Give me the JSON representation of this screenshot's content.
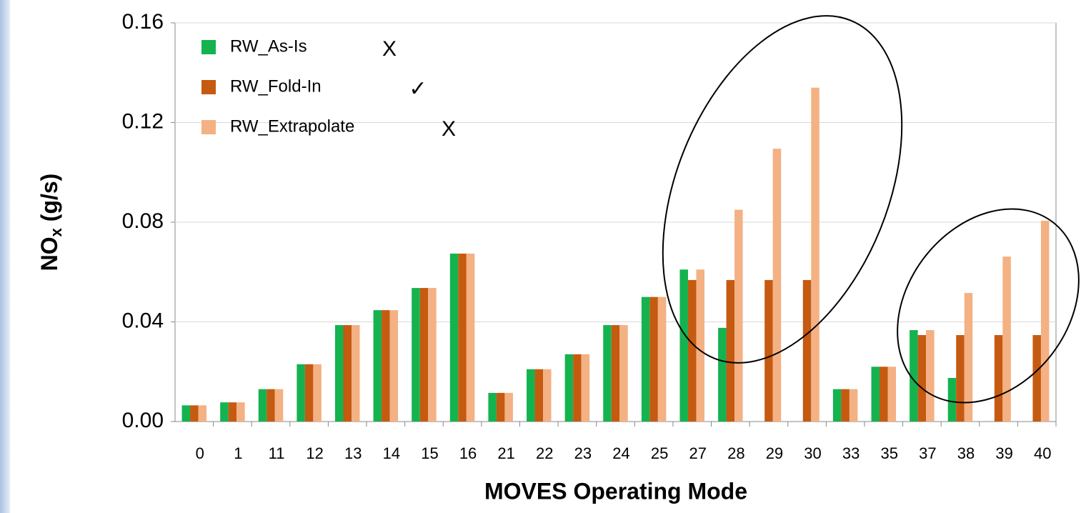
{
  "chart_data": {
    "type": "bar",
    "x_label": "MOVES Operating Mode",
    "y_label": [
      "NO",
      "x",
      " (g/s)"
    ],
    "categories": [
      "0",
      "1",
      "11",
      "12",
      "13",
      "14",
      "15",
      "16",
      "21",
      "22",
      "23",
      "24",
      "25",
      "27",
      "28",
      "29",
      "30",
      "33",
      "35",
      "37",
      "38",
      "39",
      "40"
    ],
    "series": [
      {
        "name": "RW_As-Is",
        "color": "#14b350",
        "annotation": "X",
        "values": [
          0.0065,
          0.0077,
          0.013,
          0.023,
          0.0387,
          0.0447,
          0.0536,
          0.0674,
          0.0115,
          0.021,
          0.027,
          0.0387,
          0.05,
          0.061,
          0.0376,
          null,
          null,
          0.013,
          0.022,
          0.0367,
          0.0175,
          null,
          null
        ]
      },
      {
        "name": "RW_Fold-In",
        "color": "#c55a11",
        "annotation": "✓",
        "values": [
          0.0065,
          0.0077,
          0.013,
          0.023,
          0.0387,
          0.0447,
          0.0536,
          0.0674,
          0.0115,
          0.021,
          0.027,
          0.0387,
          0.05,
          0.0568,
          0.0568,
          0.0568,
          0.0568,
          0.013,
          0.022,
          0.0347,
          0.0347,
          0.0347,
          0.0347
        ]
      },
      {
        "name": "RW_Extrapolate",
        "color": "#f4b183",
        "annotation": "X",
        "values": [
          0.0065,
          0.0077,
          0.013,
          0.023,
          0.0387,
          0.0447,
          0.0536,
          0.0674,
          0.0115,
          0.021,
          0.027,
          0.0387,
          0.05,
          0.061,
          0.085,
          0.1095,
          0.134,
          0.013,
          0.022,
          0.0367,
          0.0516,
          0.0662,
          0.0806
        ]
      }
    ],
    "ylim": [
      0,
      0.16
    ],
    "yticks": [
      {
        "value": 0,
        "label": "0.00"
      },
      {
        "value": 0.04,
        "label": "0.04"
      },
      {
        "value": 0.08,
        "label": "0.08"
      },
      {
        "value": 0.12,
        "label": "0.12"
      },
      {
        "value": 0.16,
        "label": "0.16"
      }
    ],
    "grid": true,
    "legend": "upper left"
  }
}
